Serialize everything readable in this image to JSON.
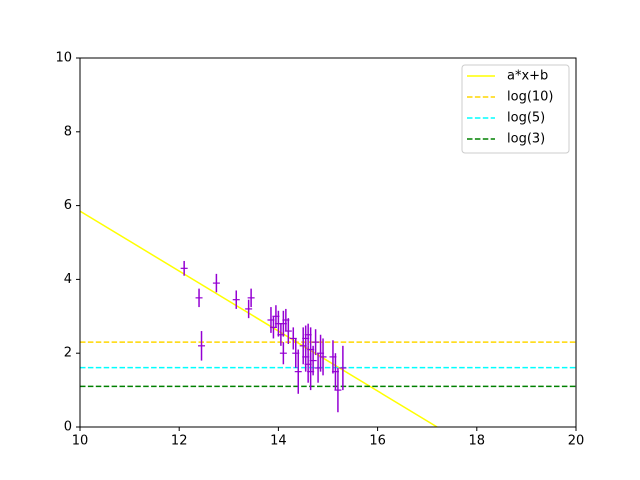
{
  "chart_data": {
    "type": "line",
    "xlim": [
      10,
      20
    ],
    "xticks": [
      10,
      12,
      14,
      16,
      18,
      20
    ],
    "ylim": [
      0,
      10
    ],
    "yticks": [
      0,
      2,
      4,
      6,
      8,
      10
    ],
    "legend": "upper right",
    "series": [
      {
        "name": "a*x+b",
        "color": "#ffff00",
        "dashed": false,
        "x": [
          10,
          17.2
        ],
        "values": [
          5.85,
          0
        ]
      },
      {
        "name": "log(10)",
        "color": "#ffd700",
        "dashed": true,
        "x": [
          10,
          20
        ],
        "values": [
          2.3,
          2.3
        ]
      },
      {
        "name": "log(5)",
        "color": "#00ffff",
        "dashed": true,
        "x": [
          10,
          20
        ],
        "values": [
          1.61,
          1.61
        ]
      },
      {
        "name": "log(3)",
        "color": "#008000",
        "dashed": true,
        "x": [
          10,
          20
        ],
        "values": [
          1.1,
          1.1
        ]
      }
    ],
    "points": {
      "color": "#9400d3",
      "x": [
        12.1,
        12.4,
        12.45,
        12.75,
        13.15,
        13.4,
        13.45,
        13.85,
        13.9,
        13.95,
        14.0,
        14.05,
        14.1,
        14.1,
        14.15,
        14.2,
        14.3,
        14.35,
        14.4,
        14.5,
        14.55,
        14.55,
        14.6,
        14.6,
        14.65,
        14.65,
        14.7,
        14.75,
        14.8,
        14.85,
        14.9,
        15.1,
        15.15,
        15.2,
        15.3
      ],
      "values": [
        4.3,
        3.5,
        2.2,
        3.9,
        3.45,
        3.2,
        3.5,
        2.9,
        2.7,
        3.0,
        2.8,
        2.5,
        2.0,
        2.8,
        2.9,
        2.6,
        2.4,
        2.0,
        1.5,
        2.2,
        2.4,
        1.9,
        2.5,
        1.7,
        2.1,
        1.5,
        1.8,
        2.3,
        1.6,
        2.0,
        1.9,
        1.9,
        1.5,
        1.0,
        1.6
      ],
      "errors": [
        0.2,
        0.25,
        0.4,
        0.25,
        0.25,
        0.25,
        0.25,
        0.35,
        0.3,
        0.3,
        0.35,
        0.3,
        0.3,
        0.35,
        0.3,
        0.35,
        0.3,
        0.4,
        0.6,
        0.5,
        0.35,
        0.4,
        0.3,
        0.5,
        0.6,
        0.5,
        0.4,
        0.35,
        0.4,
        0.5,
        0.5,
        0.45,
        0.5,
        0.6,
        0.6
      ]
    }
  }
}
